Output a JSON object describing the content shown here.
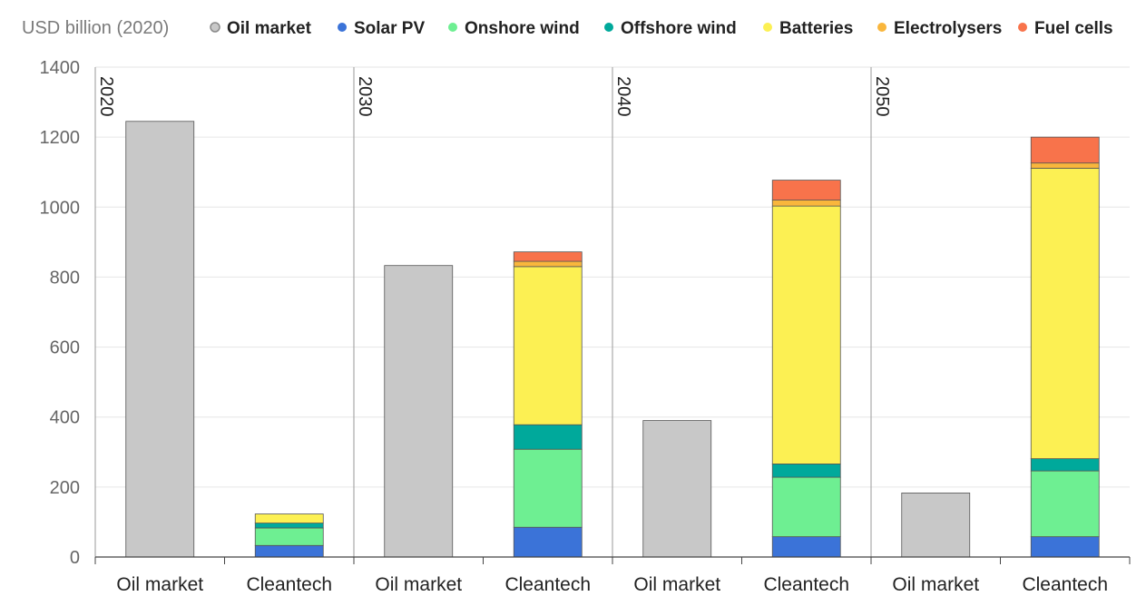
{
  "chart_data": {
    "type": "bar",
    "stacked": true,
    "ylabel": "USD billion (2020)",
    "ylim": [
      0,
      1400
    ],
    "yticks": [
      0,
      200,
      400,
      600,
      800,
      1000,
      1200,
      1400
    ],
    "grid": true,
    "legend_position": "top",
    "groups": [
      {
        "label": "2020",
        "bars": [
          {
            "label": "Oil market",
            "segments": [
              1245
            ]
          },
          {
            "label": "Cleantech",
            "segments": [
              0,
              33,
              50,
              14,
              26,
              0,
              0
            ]
          }
        ]
      },
      {
        "label": "2030",
        "bars": [
          {
            "label": "Oil market",
            "segments": [
              833
            ]
          },
          {
            "label": "Cleantech",
            "segments": [
              0,
              85,
              223,
              70,
              452,
              15,
              27
            ]
          }
        ]
      },
      {
        "label": "2040",
        "bars": [
          {
            "label": "Oil market",
            "segments": [
              390
            ]
          },
          {
            "label": "Cleantech",
            "segments": [
              0,
              58,
              170,
              38,
              737,
              17,
              57
            ]
          }
        ]
      },
      {
        "label": "2050",
        "bars": [
          {
            "label": "Oil market",
            "segments": [
              183
            ]
          },
          {
            "label": "Cleantech",
            "segments": [
              0,
              58,
              188,
              35,
              830,
              15,
              74
            ]
          }
        ]
      }
    ],
    "series": [
      {
        "name": "Oil market",
        "color": "#c8c8c8"
      },
      {
        "name": "Solar PV",
        "color": "#3b73d8"
      },
      {
        "name": "Onshore wind",
        "color": "#6eef92"
      },
      {
        "name": "Offshore wind",
        "color": "#00a99b"
      },
      {
        "name": "Batteries",
        "color": "#fcf053"
      },
      {
        "name": "Electrolysers",
        "color": "#f9b63c"
      },
      {
        "name": "Fuel cells",
        "color": "#f8734b"
      }
    ]
  }
}
